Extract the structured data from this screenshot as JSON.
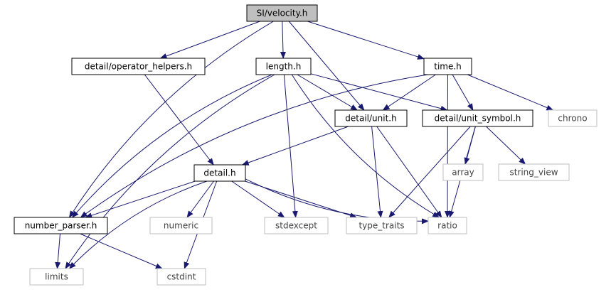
{
  "colors": {
    "edge": "#191970",
    "root_fill": "#bfbfbf",
    "node_fill": "#ffffff",
    "node_border": "#000000",
    "external_border": "#bfbfbf",
    "external_text": "#444444"
  },
  "nodes": [
    {
      "id": "velocity",
      "label": "SI/velocity.h",
      "kind": "root"
    },
    {
      "id": "operator_helpers",
      "label": "detail/operator_helpers.h",
      "kind": "header"
    },
    {
      "id": "length",
      "label": "length.h",
      "kind": "header"
    },
    {
      "id": "time",
      "label": "time.h",
      "kind": "header"
    },
    {
      "id": "unit",
      "label": "detail/unit.h",
      "kind": "header"
    },
    {
      "id": "unit_symbol",
      "label": "detail/unit_symbol.h",
      "kind": "header"
    },
    {
      "id": "chrono",
      "label": "chrono",
      "kind": "external"
    },
    {
      "id": "detail",
      "label": "detail.h",
      "kind": "header"
    },
    {
      "id": "array",
      "label": "array",
      "kind": "external"
    },
    {
      "id": "string_view",
      "label": "string_view",
      "kind": "external"
    },
    {
      "id": "number_parser",
      "label": "number_parser.h",
      "kind": "header"
    },
    {
      "id": "numeric",
      "label": "numeric",
      "kind": "external"
    },
    {
      "id": "stdexcept",
      "label": "stdexcept",
      "kind": "external"
    },
    {
      "id": "type_traits",
      "label": "type_traits",
      "kind": "external"
    },
    {
      "id": "ratio",
      "label": "ratio",
      "kind": "external"
    },
    {
      "id": "limits",
      "label": "limits",
      "kind": "external"
    },
    {
      "id": "cstdint",
      "label": "cstdint",
      "kind": "external"
    }
  ],
  "edges": [
    {
      "from": "velocity",
      "to": "operator_helpers"
    },
    {
      "from": "velocity",
      "to": "length"
    },
    {
      "from": "velocity",
      "to": "time"
    },
    {
      "from": "velocity",
      "to": "unit"
    },
    {
      "from": "velocity",
      "to": "number_parser"
    },
    {
      "from": "operator_helpers",
      "to": "detail"
    },
    {
      "from": "length",
      "to": "unit"
    },
    {
      "from": "length",
      "to": "unit_symbol"
    },
    {
      "from": "length",
      "to": "number_parser"
    },
    {
      "from": "length",
      "to": "stdexcept"
    },
    {
      "from": "length",
      "to": "ratio"
    },
    {
      "from": "length",
      "to": "limits"
    },
    {
      "from": "time",
      "to": "unit"
    },
    {
      "from": "time",
      "to": "unit_symbol"
    },
    {
      "from": "time",
      "to": "chrono"
    },
    {
      "from": "time",
      "to": "ratio"
    },
    {
      "from": "time",
      "to": "number_parser"
    },
    {
      "from": "unit",
      "to": "detail"
    },
    {
      "from": "unit",
      "to": "type_traits"
    },
    {
      "from": "unit",
      "to": "ratio"
    },
    {
      "from": "unit_symbol",
      "to": "array"
    },
    {
      "from": "unit_symbol",
      "to": "string_view"
    },
    {
      "from": "unit_symbol",
      "to": "type_traits"
    },
    {
      "from": "unit_symbol",
      "to": "ratio"
    },
    {
      "from": "detail",
      "to": "number_parser"
    },
    {
      "from": "detail",
      "to": "numeric"
    },
    {
      "from": "detail",
      "to": "stdexcept"
    },
    {
      "from": "detail",
      "to": "type_traits"
    },
    {
      "from": "detail",
      "to": "ratio"
    },
    {
      "from": "detail",
      "to": "limits"
    },
    {
      "from": "detail",
      "to": "cstdint"
    },
    {
      "from": "number_parser",
      "to": "limits"
    },
    {
      "from": "number_parser",
      "to": "cstdint"
    }
  ]
}
